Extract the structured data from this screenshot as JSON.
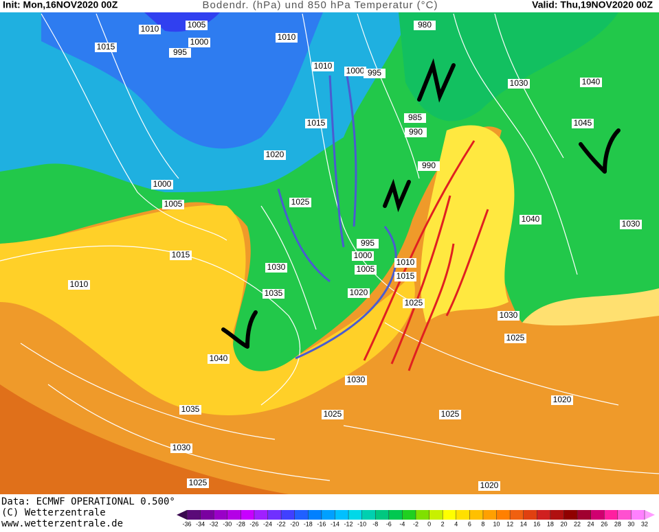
{
  "header": {
    "init": "Init: Mon,16NOV2020 00Z",
    "title": "Bodendr. (hPa) und 850 hPa Temperatur (°C)",
    "valid": "Valid: Thu,19NOV2020 00Z"
  },
  "map": {
    "isobar_labels": [
      "1010",
      "1005",
      "1000",
      "995",
      "1015",
      "1010",
      "1010",
      "1000",
      "995",
      "980",
      "1040",
      "1045",
      "985",
      "990",
      "990",
      "1015",
      "1020",
      "1025",
      "1000",
      "1005",
      "1015",
      "1010",
      "1030",
      "1035",
      "995",
      "1000",
      "1005",
      "1020",
      "1010",
      "1015",
      "1025",
      "1040",
      "1030",
      "1030",
      "1025",
      "1040",
      "1030",
      "1025",
      "1025",
      "1020",
      "1035",
      "1030",
      "1025",
      "1020",
      "1030"
    ]
  },
  "footer": {
    "source": "Data: ECMWF OPERATIONAL 0.500°",
    "copyright": "(C) Wetterzentrale",
    "url": "www.wetterzentrale.de"
  },
  "colorbar": {
    "ticks": [
      -36,
      -34,
      -32,
      -30,
      -28,
      -26,
      -24,
      -22,
      -20,
      -18,
      -16,
      -14,
      -12,
      -10,
      -8,
      -6,
      -4,
      -2,
      0,
      2,
      4,
      6,
      8,
      10,
      12,
      14,
      16,
      18,
      20,
      22,
      24,
      26,
      28,
      30,
      32
    ]
  }
}
